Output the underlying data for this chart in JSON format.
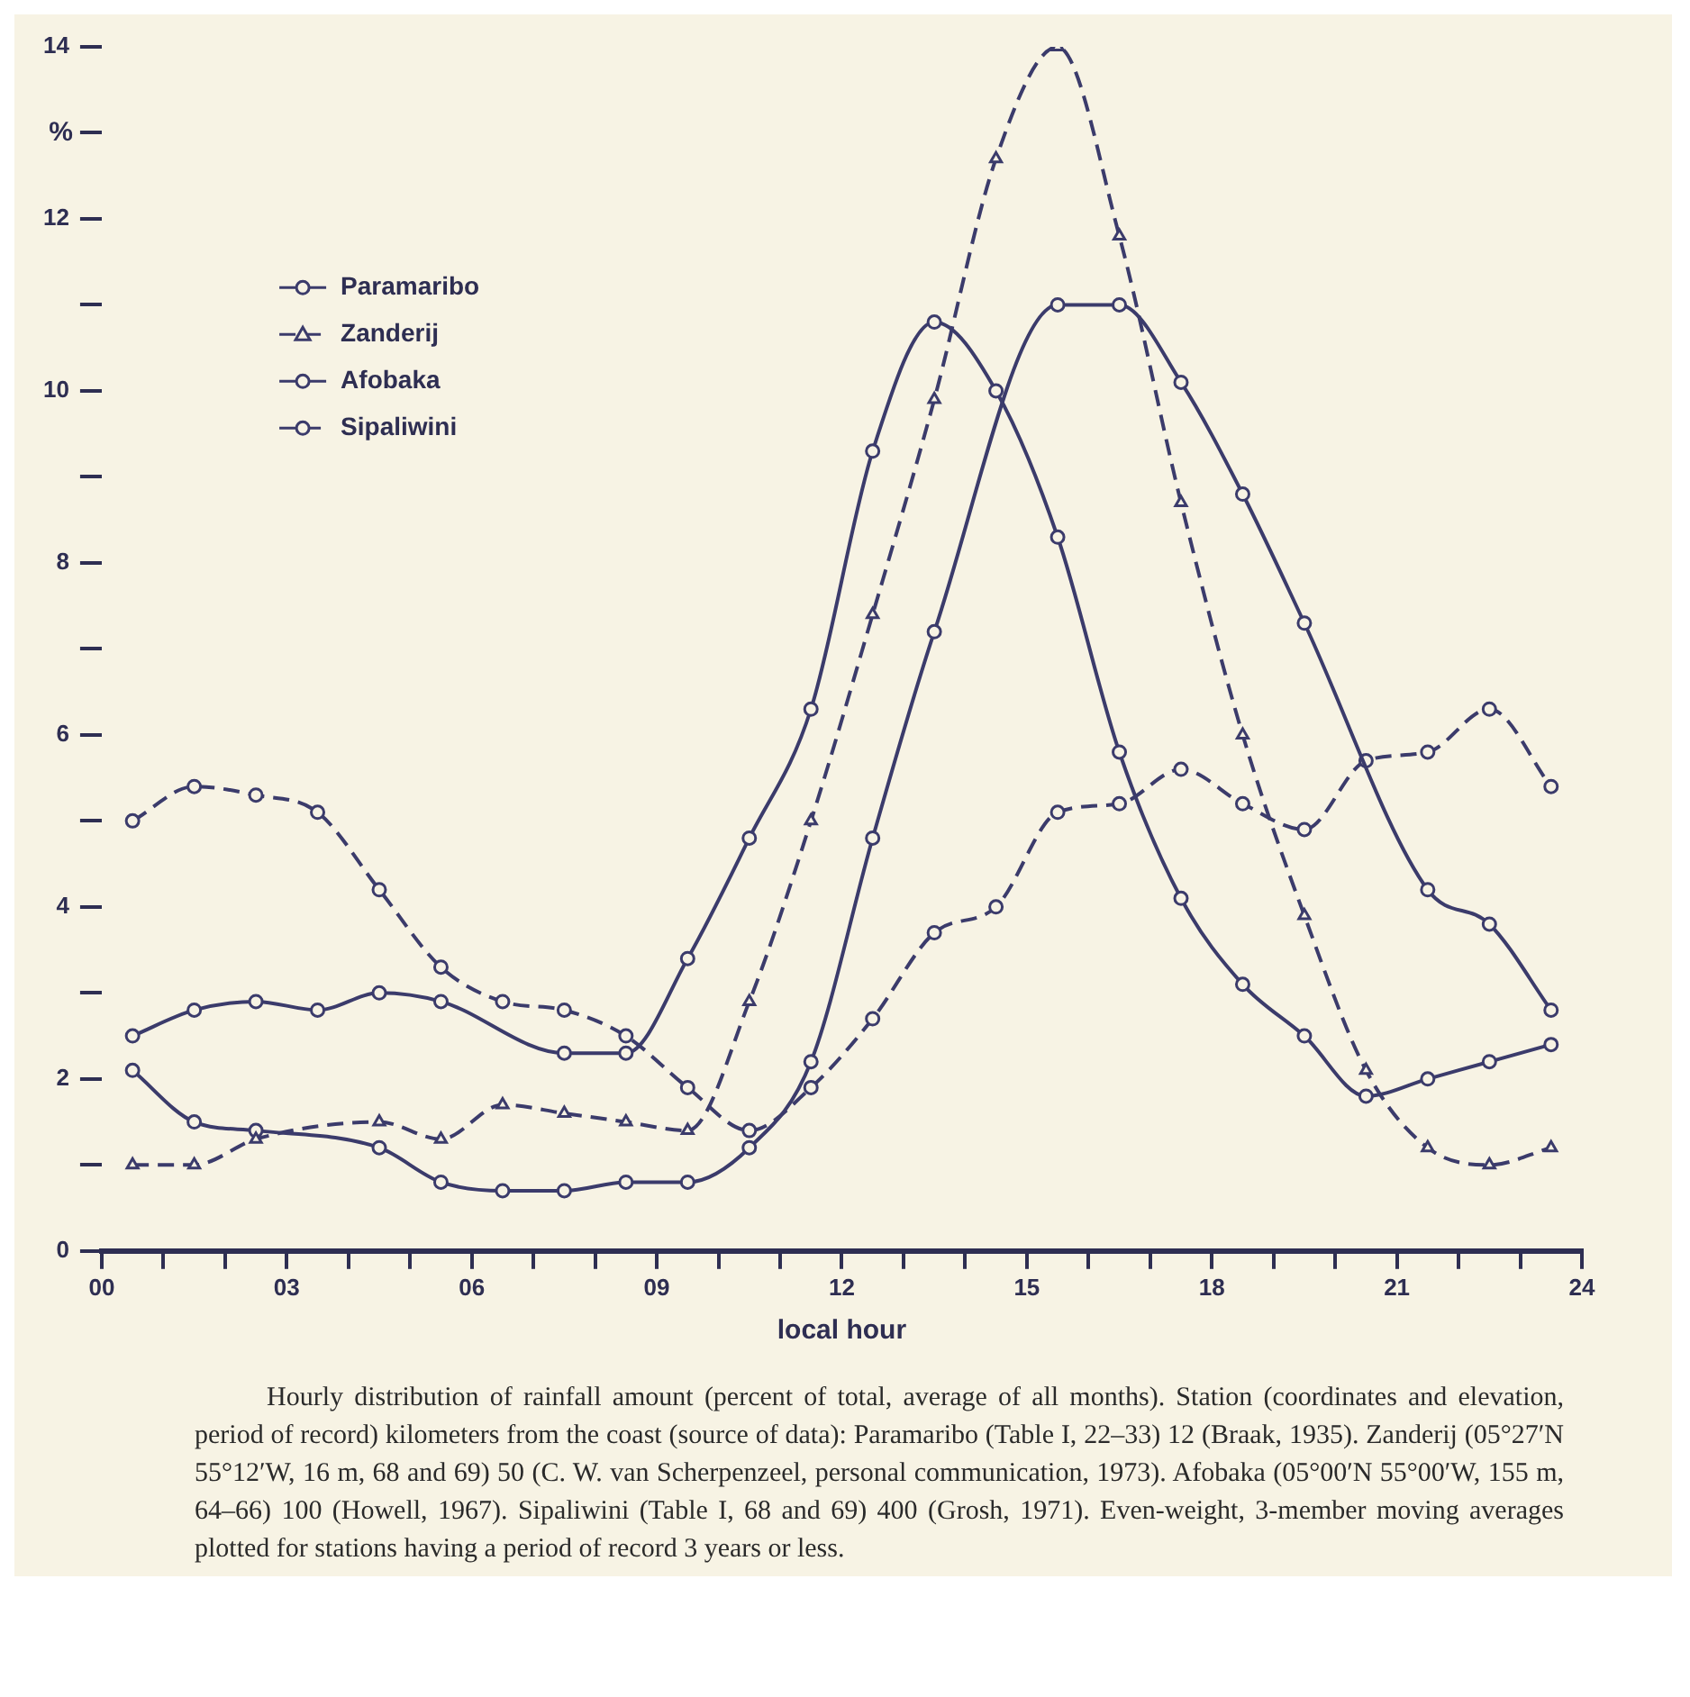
{
  "chart_data": {
    "type": "line",
    "xlabel": "local hour",
    "ylabel": "%",
    "xlim": [
      0,
      24
    ],
    "ylim": [
      0,
      14
    ],
    "xticks": [
      {
        "value": 0,
        "label": "00"
      },
      {
        "value": 1,
        "label": null
      },
      {
        "value": 2,
        "label": null
      },
      {
        "value": 3,
        "label": "03"
      },
      {
        "value": 4,
        "label": null
      },
      {
        "value": 5,
        "label": null
      },
      {
        "value": 6,
        "label": "06"
      },
      {
        "value": 7,
        "label": null
      },
      {
        "value": 8,
        "label": null
      },
      {
        "value": 9,
        "label": "09"
      },
      {
        "value": 10,
        "label": null
      },
      {
        "value": 11,
        "label": null
      },
      {
        "value": 12,
        "label": "12"
      },
      {
        "value": 13,
        "label": null
      },
      {
        "value": 14,
        "label": null
      },
      {
        "value": 15,
        "label": "15"
      },
      {
        "value": 16,
        "label": null
      },
      {
        "value": 17,
        "label": null
      },
      {
        "value": 18,
        "label": "18"
      },
      {
        "value": 19,
        "label": null
      },
      {
        "value": 20,
        "label": null
      },
      {
        "value": 21,
        "label": "21"
      },
      {
        "value": 22,
        "label": null
      },
      {
        "value": 23,
        "label": null
      },
      {
        "value": 24,
        "label": "24"
      }
    ],
    "yticks": [
      0,
      {
        "value": 1,
        "label": null
      },
      2,
      {
        "value": 3,
        "label": null
      },
      4,
      {
        "value": 5,
        "label": null
      },
      6,
      {
        "value": 7,
        "label": null
      },
      8,
      {
        "value": 9,
        "label": null
      },
      10,
      {
        "value": 11,
        "label": null
      },
      12,
      {
        "value": 13,
        "label": null
      },
      14
    ],
    "x": [
      0.5,
      1.5,
      2.5,
      3.5,
      4.5,
      5.5,
      6.5,
      7.5,
      8.5,
      9.5,
      10.5,
      11.5,
      12.5,
      13.5,
      14.5,
      15.5,
      16.5,
      17.5,
      18.5,
      19.5,
      20.5,
      21.5,
      22.5,
      23.5
    ],
    "grid": false,
    "legend": "top left",
    "series": [
      {
        "name": "Paramaribo",
        "color": "#3b3b6b",
        "marker": "circle",
        "line_style": "solid",
        "values": [
          2.5,
          2.8,
          2.9,
          2.8,
          3.0,
          2.9,
          null,
          2.3,
          2.3,
          3.4,
          4.8,
          6.3,
          9.3,
          10.8,
          10.0,
          8.3,
          5.8,
          4.1,
          3.1,
          2.5,
          1.8,
          2.0,
          2.2,
          2.4
        ]
      },
      {
        "name": "Zanderij",
        "color": "#3b3b6b",
        "marker": "triangle",
        "line_style": "dashed",
        "values": [
          1.0,
          1.0,
          1.3,
          null,
          1.5,
          1.3,
          1.7,
          1.6,
          1.5,
          1.4,
          2.9,
          5.0,
          7.4,
          9.9,
          12.7,
          14.0,
          11.8,
          8.7,
          6.0,
          3.9,
          2.1,
          1.2,
          1.0,
          1.2
        ]
      },
      {
        "name": "Afobaka",
        "color": "#3b3b6b",
        "marker": "circle",
        "line_style": "solid",
        "values": [
          2.1,
          1.5,
          1.4,
          null,
          1.2,
          0.8,
          0.7,
          0.7,
          0.8,
          0.8,
          1.2,
          2.2,
          4.8,
          7.2,
          null,
          11.0,
          11.0,
          10.1,
          8.8,
          7.3,
          null,
          4.2,
          3.8,
          2.8
        ]
      },
      {
        "name": "Sipaliwini",
        "color": "#3b3b6b",
        "marker": "circle",
        "line_style": "dashed",
        "values": [
          5.0,
          5.4,
          5.3,
          5.1,
          4.2,
          3.3,
          2.9,
          2.8,
          2.5,
          1.9,
          1.4,
          1.9,
          2.7,
          3.7,
          4.0,
          5.1,
          5.2,
          5.6,
          5.2,
          4.9,
          5.7,
          5.8,
          6.3,
          5.4
        ]
      }
    ],
    "annotations": [
      "Hourly distribution of rainfall amount (percent of total, average of all months). Station (coordinates and elevation, period of record) kilometers from the coast (source of data): Paramaribo (Table I, 22–33) 12 (Braak, 1935). Zanderij (05°27′N 55°12′W, 16 m, 68 and 69) 50 (C. W. van Scherpenzeel, personal communication, 1973). Afobaka (05°00′N 55°00′W, 155 m, 64–66) 100 (Howell, 1967). Sipaliwini (Table I, 68 and 69) 400 (Grosh, 1971). Even-weight, 3-member moving averages plotted for stations having a period of record 3 years or less."
    ]
  }
}
